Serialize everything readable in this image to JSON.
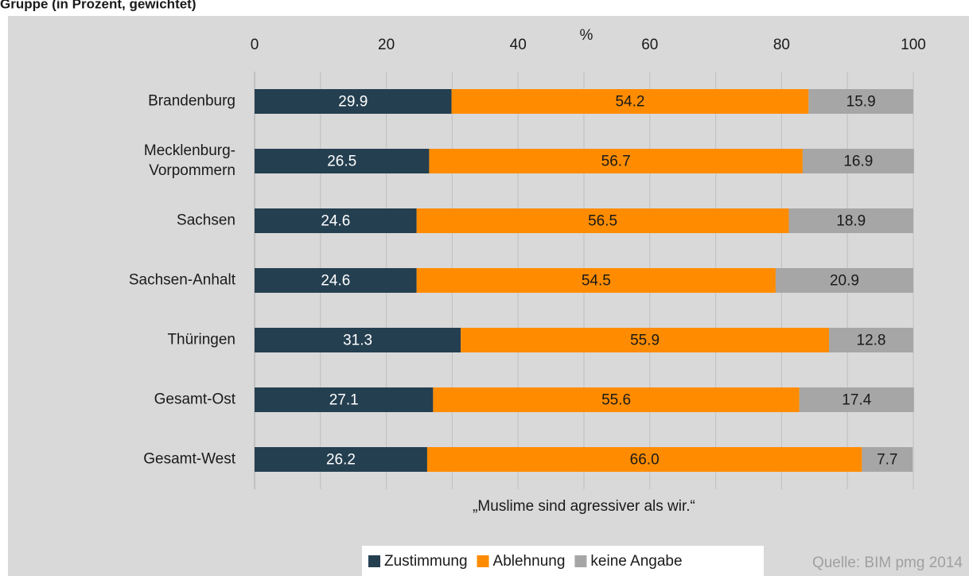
{
  "chart_data": {
    "type": "stacked_bar_horizontal",
    "title": "Gruppe (in Prozent, gewichtet)",
    "x_label": "%",
    "caption": "„Muslime sind agressiver als wir.“",
    "source": "Quelle: BIM pmg 2014",
    "categories": [
      "Brandenburg",
      "Mecklenburg-\nVorpommern",
      "Sachsen",
      "Sachsen-Anhalt",
      "Thüringen",
      "Gesamt-Ost",
      "Gesamt-West"
    ],
    "series": [
      {
        "name": "Zustimmung",
        "color": "#243f50",
        "label_color": "#ffffff",
        "values": [
          29.9,
          26.5,
          24.6,
          24.6,
          31.3,
          27.1,
          26.2
        ]
      },
      {
        "name": "Ablehnung",
        "color": "#ff8c00",
        "label_color": "#1a1a1a",
        "values": [
          54.2,
          56.7,
          56.5,
          54.5,
          55.9,
          55.6,
          66.0
        ],
        "value_labels": [
          "54.2",
          "56.7",
          "56.5",
          "54.5",
          "55.9",
          "55.6",
          "66.0"
        ]
      },
      {
        "name": "keine Angabe",
        "color": "#a6a6a6",
        "label_color": "#1a1a1a",
        "values": [
          15.9,
          16.9,
          18.9,
          20.9,
          12.8,
          17.4,
          7.7
        ]
      }
    ],
    "xlim": [
      0,
      100
    ],
    "xticks": [
      0,
      20,
      40,
      60,
      80,
      100
    ],
    "xminor": [
      10,
      30,
      50,
      70,
      90
    ],
    "grid": true,
    "legend": "bottom"
  }
}
